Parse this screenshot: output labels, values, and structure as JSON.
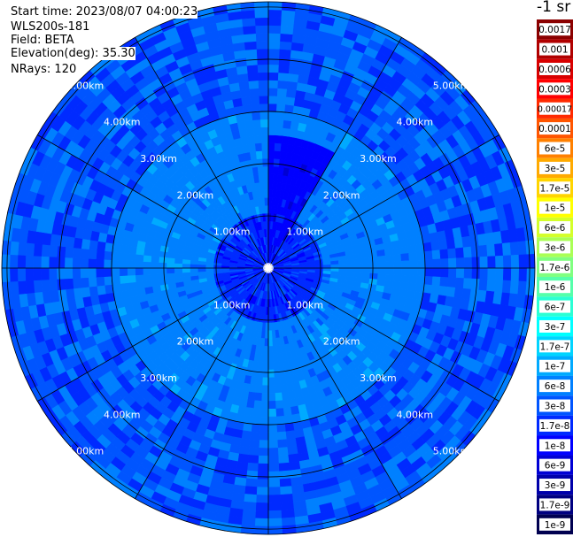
{
  "header": {
    "start_time": "Start time: 2023/08/07 04:00:23",
    "instrument": "WLS200s-181",
    "field": "Field: BETA",
    "elevation": "Elevation(deg): 35.30",
    "nrays": "NRays: 120"
  },
  "colorbar": {
    "unit_label": "-1 sr",
    "labels": [
      "0.0017",
      "0.001",
      "0.0006",
      "0.0003",
      "0.00017",
      "0.0001",
      "6e-5",
      "3e-5",
      "1.7e-5",
      "1e-5",
      "6e-6",
      "3e-6",
      "1.7e-6",
      "1e-6",
      "6e-7",
      "3e-7",
      "1.7e-7",
      "1e-7",
      "6e-8",
      "3e-8",
      "1.7e-8",
      "1e-8",
      "6e-9",
      "3e-9",
      "1.7e-9",
      "1e-9"
    ],
    "colors": [
      "#8b0000",
      "#b00000",
      "#d80000",
      "#ff0000",
      "#ff2a00",
      "#ff5500",
      "#ff8000",
      "#ffaa00",
      "#ffd400",
      "#ffff00",
      "#d4ff2a",
      "#aaff55",
      "#80ff80",
      "#55ffaa",
      "#2affd4",
      "#00ffff",
      "#00d4ff",
      "#00aaff",
      "#0080ff",
      "#0055ff",
      "#002aff",
      "#0000ff",
      "#0000d4",
      "#0000aa",
      "#000080",
      "#000050"
    ]
  },
  "chart_data": {
    "type": "heatmap",
    "projection": "polar-ppi",
    "range_max_km": 5.1,
    "range_rings_km": [
      1,
      2,
      3,
      4,
      5
    ],
    "ring_labels": [
      "1.00km",
      "2.00km",
      "3.00km",
      "4.00km",
      "5.00km"
    ],
    "azimuth_spokes_deg": [
      0,
      30,
      60,
      90,
      120,
      150,
      180,
      210,
      240,
      270,
      300,
      330
    ],
    "nrays": 120,
    "field": "BETA",
    "elevation_deg": 35.3,
    "regions": [
      {
        "r_km": [
          0.0,
          1.0
        ],
        "value": "1.7e-8"
      },
      {
        "r_km": [
          1.0,
          3.0
        ],
        "value": "6e-8"
      },
      {
        "r_km": [
          3.0,
          5.1
        ],
        "value": "3e-8"
      },
      {
        "azimuth_deg": [
          0,
          30
        ],
        "r_km": [
          0.2,
          2.6
        ],
        "value": "1e-8"
      }
    ]
  }
}
